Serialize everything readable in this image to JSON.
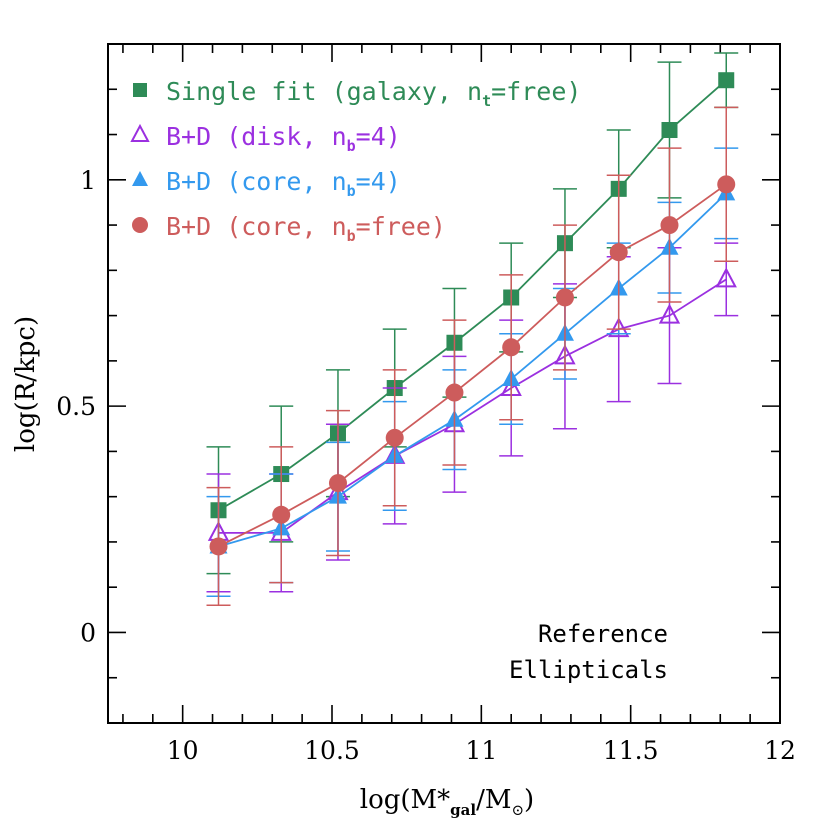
{
  "chart_data": {
    "type": "line",
    "xlabel": {
      "prefix": "log(M*",
      "sub": "gal",
      "mid": "/M",
      "sub2": "⊙",
      "suffix": ")"
    },
    "ylabel": "log(R/kpc)",
    "xlim": [
      9.75,
      12.0
    ],
    "ylim": [
      -0.2,
      1.3
    ],
    "x_major_ticks": [
      10,
      10.5,
      11,
      11.5,
      12
    ],
    "x_tick_labels": [
      "10",
      "10.5",
      "11",
      "11.5",
      "12"
    ],
    "x_minor_step": 0.1,
    "y_major_ticks": [
      0,
      0.5,
      1
    ],
    "y_tick_labels": [
      "0",
      "0.5",
      "1"
    ],
    "y_minor_step": 0.1,
    "annotation": [
      "Reference",
      "Ellipticals"
    ],
    "annotation_position": "bottom-right",
    "legend_position": "top-left",
    "series": [
      {
        "name": "Single fit",
        "legend_label": {
          "main": "Single fit (galaxy, n",
          "sub": "t",
          "rest": "=free)"
        },
        "marker": "filled-square",
        "color": "#2e8b57",
        "x": [
          10.12,
          10.33,
          10.52,
          10.71,
          10.91,
          11.1,
          11.28,
          11.46,
          11.63,
          11.82
        ],
        "y": [
          0.27,
          0.35,
          0.44,
          0.54,
          0.64,
          0.74,
          0.86,
          0.98,
          1.11,
          1.22
        ],
        "err": [
          0.14,
          0.15,
          0.14,
          0.13,
          0.12,
          0.12,
          0.12,
          0.13,
          0.15,
          0.06
        ]
      },
      {
        "name": "B+D (disk)",
        "legend_label": {
          "main": "B+D (disk, n",
          "sub": "b",
          "rest": "=4)"
        },
        "marker": "open-triangle",
        "color": "#9b30e0",
        "x": [
          10.12,
          10.33,
          10.52,
          10.71,
          10.91,
          11.1,
          11.28,
          11.46,
          11.63,
          11.82
        ],
        "y": [
          0.22,
          0.22,
          0.31,
          0.39,
          0.46,
          0.54,
          0.61,
          0.67,
          0.7,
          0.78
        ],
        "err": [
          0.13,
          0.13,
          0.15,
          0.15,
          0.15,
          0.15,
          0.16,
          0.16,
          0.15,
          0.08
        ]
      },
      {
        "name": "B+D (core, n_b=4)",
        "legend_label": {
          "main": "B+D (core, n",
          "sub": "b",
          "rest": "=4)"
        },
        "marker": "filled-triangle",
        "color": "#3399ee",
        "x": [
          10.12,
          10.33,
          10.52,
          10.71,
          10.91,
          11.1,
          11.28,
          11.46,
          11.63,
          11.82
        ],
        "y": [
          0.19,
          0.23,
          0.3,
          0.39,
          0.47,
          0.56,
          0.66,
          0.76,
          0.85,
          0.97
        ],
        "err": [
          0.11,
          0.12,
          0.12,
          0.12,
          0.11,
          0.1,
          0.1,
          0.1,
          0.1,
          0.1
        ]
      },
      {
        "name": "B+D (core, n_b=free)",
        "legend_label": {
          "main": "B+D (core, n",
          "sub": "b",
          "rest": "=free)"
        },
        "marker": "filled-circle",
        "color": "#cd5c5c",
        "x": [
          10.12,
          10.33,
          10.52,
          10.71,
          10.91,
          11.1,
          11.28,
          11.46,
          11.63,
          11.82
        ],
        "y": [
          0.19,
          0.26,
          0.33,
          0.43,
          0.53,
          0.63,
          0.74,
          0.84,
          0.9,
          0.99
        ],
        "err": [
          0.13,
          0.15,
          0.16,
          0.15,
          0.16,
          0.16,
          0.16,
          0.17,
          0.17,
          0.17
        ]
      }
    ]
  }
}
